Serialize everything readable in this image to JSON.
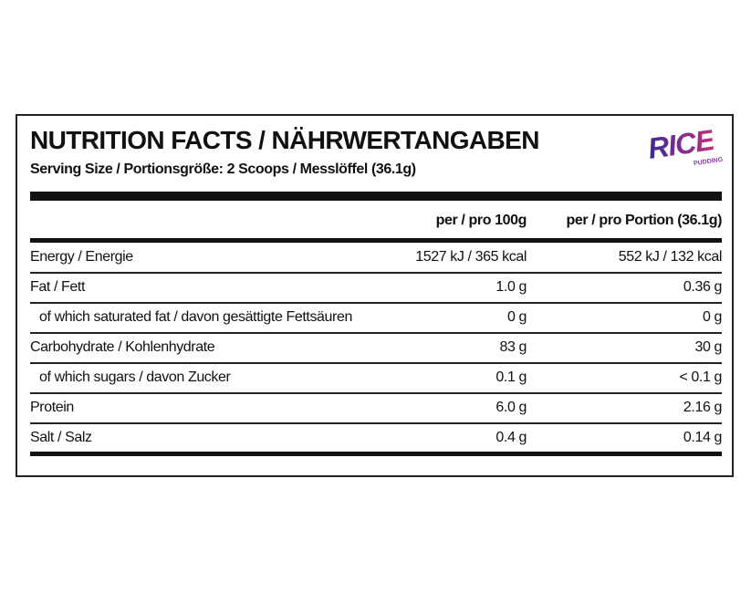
{
  "header": {
    "title": "NUTRITION FACTS / NÄHRWERTANGABEN",
    "serving_size": "Serving Size / Portionsgröße: 2 Scoops / Messlöffel (36.1g)"
  },
  "logo": {
    "text": "RICE",
    "subtext": "PUDDING"
  },
  "table": {
    "columns": [
      "per / pro 100g",
      "per / pro Portion (36.1g)"
    ],
    "rows": [
      {
        "label": "Energy / Energie",
        "per_100g": "1527 kJ / 365 kcal",
        "per_portion": "552 kJ / 132 kcal",
        "sub": false
      },
      {
        "label": "Fat / Fett",
        "per_100g": "1.0 g",
        "per_portion": "0.36 g",
        "sub": false
      },
      {
        "label": "of which saturated fat / davon gesättigte Fettsäuren",
        "per_100g": "0 g",
        "per_portion": "0 g",
        "sub": true
      },
      {
        "label": "Carbohydrate / Kohlenhydrate",
        "per_100g": "83 g",
        "per_portion": "30 g",
        "sub": false
      },
      {
        "label": "of which sugars / davon Zucker",
        "per_100g": "0.1 g",
        "per_portion": "< 0.1 g",
        "sub": true
      },
      {
        "label": "Protein",
        "per_100g": "6.0 g",
        "per_portion": "2.16 g",
        "sub": false
      },
      {
        "label": "Salt / Salz",
        "per_100g": "0.4 g",
        "per_portion": "0.14 g",
        "sub": false
      }
    ]
  }
}
